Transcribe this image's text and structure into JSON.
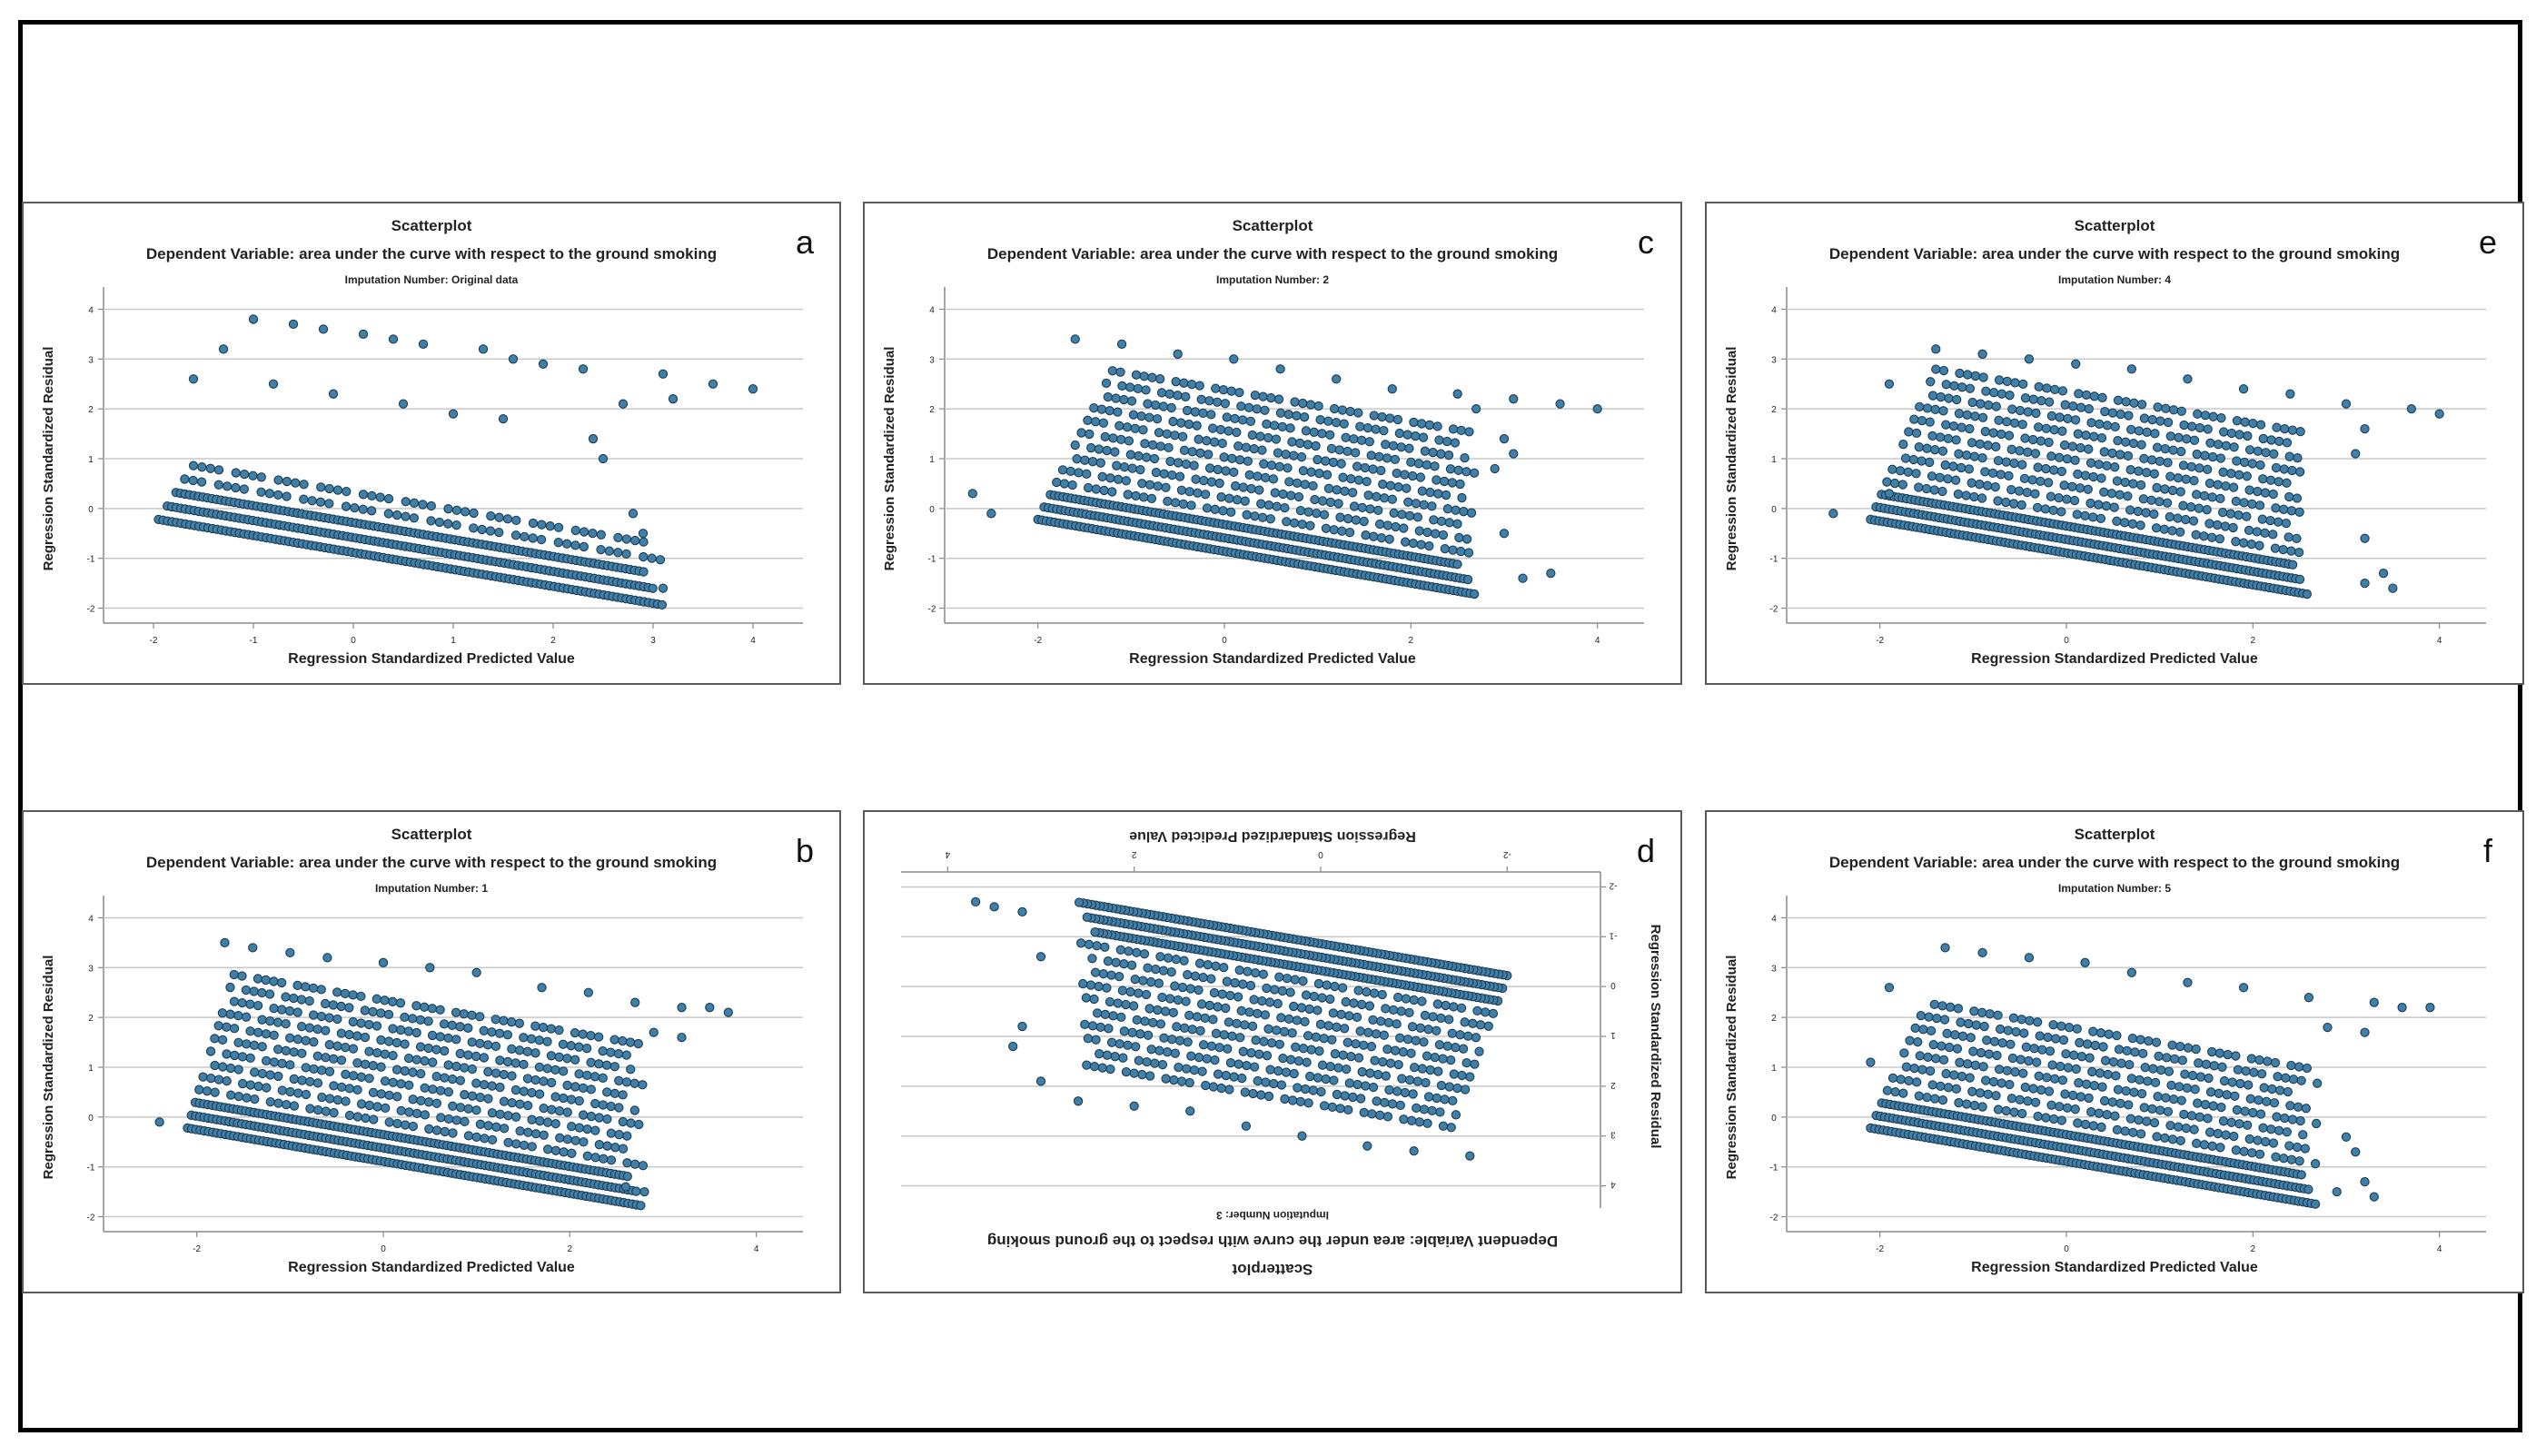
{
  "chart_data": [
    {
      "letter": "a",
      "type": "scatter",
      "title": "Scatterplot",
      "subtitle": "Dependent Variable: area under the curve with respect to the ground smoking",
      "imputation": "Imputation Number: Original data",
      "xlabel": "Regression Standardized Predicted Value",
      "ylabel": "Regression Standardized Residual",
      "xticks": [
        "-2",
        "-1",
        "0",
        "1",
        "2",
        "3",
        "4"
      ],
      "xtick_values": [
        -2,
        -1,
        0,
        1,
        2,
        3,
        4
      ],
      "yticks": [
        "4",
        "3",
        "2",
        "1",
        "0",
        "-1",
        "-2"
      ],
      "ytick_values": [
        4,
        3,
        2,
        1,
        0,
        -1,
        -2
      ],
      "xlim": [
        -2.5,
        4.5
      ],
      "ylim": [
        -2.3,
        4.3
      ],
      "bands": {
        "xmin": -1.95,
        "xmax": 3.1,
        "x_start_max": -1.6,
        "intercept_at_xmin": -0.22,
        "slope": -0.34,
        "spacing": 0.3,
        "count": 5
      },
      "points": [
        [
          -1,
          3.8
        ],
        [
          -0.6,
          3.7
        ],
        [
          -0.3,
          3.6
        ],
        [
          0.1,
          3.5
        ],
        [
          0.4,
          3.4
        ],
        [
          0.7,
          3.3
        ],
        [
          1.3,
          3.2
        ],
        [
          1.6,
          3.0
        ],
        [
          1.9,
          2.9
        ],
        [
          2.3,
          2.8
        ],
        [
          3.1,
          2.7
        ],
        [
          3.6,
          2.5
        ],
        [
          4.0,
          2.4
        ],
        [
          3.2,
          2.2
        ],
        [
          2.7,
          2.1
        ],
        [
          -1.3,
          3.2
        ],
        [
          -1.6,
          2.6
        ],
        [
          -0.8,
          2.5
        ],
        [
          -0.2,
          2.3
        ],
        [
          0.5,
          2.1
        ],
        [
          1.0,
          1.9
        ],
        [
          1.5,
          1.8
        ],
        [
          2.4,
          1.4
        ],
        [
          2.5,
          1.0
        ],
        [
          2.8,
          -0.1
        ],
        [
          2.9,
          -0.5
        ],
        [
          3.1,
          -1.6
        ]
      ]
    },
    {
      "letter": "b",
      "type": "scatter",
      "title": "Scatterplot",
      "subtitle": "Dependent Variable: area under the curve with respect to the ground smoking",
      "imputation": "Imputation Number: 1",
      "xlabel": "Regression Standardized Predicted Value",
      "ylabel": "Regression Standardized Residual",
      "xticks": [
        "-2",
        "0",
        "2",
        "4"
      ],
      "xtick_values": [
        -2,
        0,
        2,
        4
      ],
      "yticks": [
        "4",
        "3",
        "2",
        "1",
        "0",
        "-1",
        "-2"
      ],
      "ytick_values": [
        4,
        3,
        2,
        1,
        0,
        -1,
        -2
      ],
      "xlim": [
        -3.0,
        4.5
      ],
      "ylim": [
        -2.3,
        4.3
      ],
      "bands": {
        "xmin": -2.1,
        "xmax": 2.8,
        "x_start_max": -1.6,
        "intercept_at_xmin": -0.22,
        "slope": -0.32,
        "spacing": 0.27,
        "count": 13
      },
      "points": [
        [
          -2.4,
          -0.1
        ],
        [
          -1.7,
          3.5
        ],
        [
          -1.4,
          3.4
        ],
        [
          -1.0,
          3.3
        ],
        [
          -0.6,
          3.2
        ],
        [
          0.0,
          3.1
        ],
        [
          0.5,
          3.0
        ],
        [
          1.0,
          2.9
        ],
        [
          1.7,
          2.6
        ],
        [
          2.2,
          2.5
        ],
        [
          3.2,
          2.2
        ],
        [
          3.5,
          2.2
        ],
        [
          3.7,
          2.1
        ],
        [
          2.7,
          2.3
        ],
        [
          2.9,
          1.7
        ],
        [
          3.2,
          1.6
        ],
        [
          2.6,
          -1.4
        ],
        [
          2.8,
          -1.5
        ]
      ]
    },
    {
      "letter": "c",
      "type": "scatter",
      "title": "Scatterplot",
      "subtitle": "Dependent Variable: area under the curve with respect to the ground smoking",
      "imputation": "Imputation Number: 2",
      "xlabel": "Regression Standardized Predicted Value",
      "ylabel": "Regression Standardized Residual",
      "xticks": [
        "-2",
        "0",
        "2",
        "4"
      ],
      "xtick_values": [
        -2,
        0,
        2,
        4
      ],
      "yticks": [
        "4",
        "3",
        "2",
        "1",
        "0",
        "-1",
        "-2"
      ],
      "ytick_values": [
        4,
        3,
        2,
        1,
        0,
        -1,
        -2
      ],
      "xlim": [
        -3.0,
        4.5
      ],
      "ylim": [
        -2.3,
        4.3
      ],
      "bands": {
        "xmin": -2.0,
        "xmax": 2.7,
        "x_start_max": -1.2,
        "intercept_at_xmin": -0.22,
        "slope": -0.32,
        "spacing": 0.27,
        "count": 13
      },
      "points": [
        [
          -2.7,
          0.3
        ],
        [
          -2.5,
          -0.1
        ],
        [
          -1.6,
          3.4
        ],
        [
          -1.1,
          3.3
        ],
        [
          -0.5,
          3.1
        ],
        [
          0.1,
          3.0
        ],
        [
          0.6,
          2.8
        ],
        [
          1.2,
          2.6
        ],
        [
          1.8,
          2.4
        ],
        [
          2.5,
          2.3
        ],
        [
          3.1,
          2.2
        ],
        [
          3.6,
          2.1
        ],
        [
          4.0,
          2.0
        ],
        [
          2.7,
          2.0
        ],
        [
          3.0,
          1.4
        ],
        [
          3.1,
          1.1
        ],
        [
          2.9,
          0.8
        ],
        [
          3.0,
          -0.5
        ],
        [
          3.2,
          -1.4
        ],
        [
          3.5,
          -1.3
        ]
      ]
    },
    {
      "letter": "d",
      "type": "scatter",
      "title": "Scatterplot",
      "subtitle": "Dependent Variable: area under the curve with respect to the ground smoking",
      "imputation": "Imputation Number: 3",
      "xlabel": "Regression Standardized Predicted Value",
      "ylabel": "Regression Standardized Residual",
      "xticks": [
        "-2",
        "0",
        "2",
        "4"
      ],
      "xtick_values": [
        -2,
        0,
        2,
        4
      ],
      "yticks": [
        "4",
        "3",
        "2",
        "1",
        "0",
        "-1",
        "-2"
      ],
      "ytick_values": [
        4,
        3,
        2,
        1,
        0,
        -1,
        -2
      ],
      "xlim": [
        -3.0,
        4.5
      ],
      "ylim": [
        -2.3,
        4.3
      ],
      "rotated": true,
      "bands": {
        "xmin": -2.0,
        "xmax": 2.6,
        "x_start_max": -1.4,
        "intercept_at_xmin": -0.22,
        "slope": -0.32,
        "spacing": 0.27,
        "count": 13
      },
      "points": [
        [
          -1.6,
          3.4
        ],
        [
          -1.0,
          3.3
        ],
        [
          -0.5,
          3.2
        ],
        [
          0.2,
          3.0
        ],
        [
          0.8,
          2.8
        ],
        [
          1.4,
          2.5
        ],
        [
          2.0,
          2.4
        ],
        [
          2.6,
          2.3
        ],
        [
          3.0,
          1.9
        ],
        [
          3.3,
          1.2
        ],
        [
          3.2,
          0.8
        ],
        [
          3.0,
          -0.6
        ],
        [
          3.2,
          -1.5
        ],
        [
          3.5,
          -1.6
        ],
        [
          3.7,
          -1.7
        ]
      ]
    },
    {
      "letter": "e",
      "type": "scatter",
      "title": "Scatterplot",
      "subtitle": "Dependent Variable: area under the curve with respect to the ground smoking",
      "imputation": "Imputation Number: 4",
      "xlabel": "Regression Standardized Predicted Value",
      "ylabel": "Regression Standardized Residual",
      "xticks": [
        "-2",
        "0",
        "2",
        "4"
      ],
      "xtick_values": [
        -2,
        0,
        2,
        4
      ],
      "yticks": [
        "4",
        "3",
        "2",
        "1",
        "0",
        "-1",
        "-2"
      ],
      "ytick_values": [
        4,
        3,
        2,
        1,
        0,
        -1,
        -2
      ],
      "xlim": [
        -3.0,
        4.5
      ],
      "ylim": [
        -2.3,
        4.3
      ],
      "bands": {
        "xmin": -2.1,
        "xmax": 2.6,
        "x_start_max": -1.4,
        "intercept_at_xmin": -0.22,
        "slope": -0.32,
        "spacing": 0.27,
        "count": 13
      },
      "points": [
        [
          -2.5,
          -0.1
        ],
        [
          -1.9,
          0.3
        ],
        [
          -1.9,
          2.5
        ],
        [
          -1.4,
          3.2
        ],
        [
          -0.9,
          3.1
        ],
        [
          -0.4,
          3.0
        ],
        [
          0.1,
          2.9
        ],
        [
          0.7,
          2.8
        ],
        [
          1.3,
          2.6
        ],
        [
          1.9,
          2.4
        ],
        [
          2.4,
          2.3
        ],
        [
          3.0,
          2.1
        ],
        [
          3.7,
          2.0
        ],
        [
          4.0,
          1.9
        ],
        [
          3.2,
          1.6
        ],
        [
          3.1,
          1.1
        ],
        [
          3.2,
          -0.6
        ],
        [
          3.4,
          -1.3
        ],
        [
          3.5,
          -1.6
        ],
        [
          3.2,
          -1.5
        ]
      ]
    },
    {
      "letter": "f",
      "type": "scatter",
      "title": "Scatterplot",
      "subtitle": "Dependent Variable: area under the curve with respect to the ground smoking",
      "imputation": "Imputation Number: 5",
      "xlabel": "Regression Standardized Predicted Value",
      "ylabel": "Regression Standardized Residual",
      "xticks": [
        "-2",
        "0",
        "2",
        "4"
      ],
      "xtick_values": [
        -2,
        0,
        2,
        4
      ],
      "yticks": [
        "4",
        "3",
        "2",
        "1",
        "0",
        "-1",
        "-2"
      ],
      "ytick_values": [
        4,
        3,
        2,
        1,
        0,
        -1,
        -2
      ],
      "xlim": [
        -3.0,
        4.5
      ],
      "ylim": [
        -2.3,
        4.3
      ],
      "bands": {
        "xmin": -2.1,
        "xmax": 2.7,
        "x_start_max": -1.5,
        "intercept_at_xmin": -0.22,
        "slope": -0.32,
        "spacing": 0.27,
        "count": 11
      },
      "points": [
        [
          -2.1,
          1.1
        ],
        [
          -1.9,
          2.6
        ],
        [
          -1.3,
          3.4
        ],
        [
          -0.9,
          3.3
        ],
        [
          -0.4,
          3.2
        ],
        [
          0.2,
          3.1
        ],
        [
          0.7,
          2.9
        ],
        [
          1.3,
          2.7
        ],
        [
          1.9,
          2.6
        ],
        [
          2.6,
          2.4
        ],
        [
          3.3,
          2.3
        ],
        [
          3.6,
          2.2
        ],
        [
          3.9,
          2.2
        ],
        [
          2.8,
          1.8
        ],
        [
          3.2,
          1.7
        ],
        [
          3.0,
          -0.4
        ],
        [
          3.1,
          -0.7
        ],
        [
          3.2,
          -1.3
        ],
        [
          2.9,
          -1.5
        ],
        [
          3.3,
          -1.6
        ]
      ]
    }
  ]
}
